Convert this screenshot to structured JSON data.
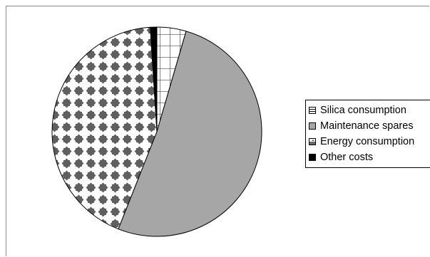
{
  "chart_data": {
    "type": "pie",
    "categories": [
      "Silica consumption",
      "Maintenance spares",
      "Energy consumption",
      "Other costs"
    ],
    "values": [
      4.5,
      51.5,
      43.0,
      1.0
    ],
    "unit": "%",
    "start_angle_deg": 0,
    "direction": "clockwise",
    "legend_position": "right",
    "title": "",
    "colors": {
      "Silica consumption": "#ffffff",
      "Maintenance spares": "#a6a6a6",
      "Energy consumption": "#606060",
      "Other costs": "#000000"
    },
    "patterns": {
      "Silica consumption": "grid",
      "Maintenance spares": "solid",
      "Energy consumption": "diamond-dots",
      "Other costs": "solid"
    }
  }
}
